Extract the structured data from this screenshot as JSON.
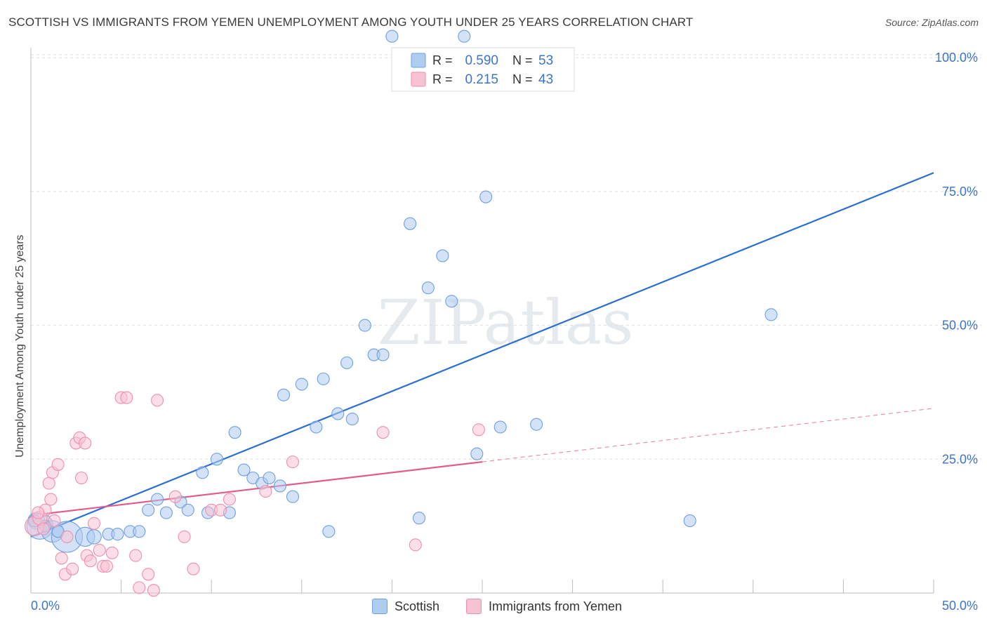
{
  "chart_data": {
    "type": "scatter",
    "title": "SCOTTISH VS IMMIGRANTS FROM YEMEN UNEMPLOYMENT AMONG YOUTH UNDER 25 YEARS CORRELATION CHART",
    "source": "Source: ZipAtlas.com",
    "xlabel": "",
    "ylabel": "Unemployment Among Youth under 25 years",
    "xlim": [
      0,
      50
    ],
    "ylim": [
      0,
      100
    ],
    "x_tick_labels": [
      "0.0%",
      "50.0%"
    ],
    "y_tick_labels": [
      "25.0%",
      "50.0%",
      "75.0%",
      "100.0%"
    ],
    "y_ticks": [
      25,
      50,
      75,
      100
    ],
    "grid": true,
    "watermark": "ZIPatlas",
    "legend": {
      "rows": [
        {
          "r_label": "R =",
          "r_value": "0.590",
          "n_label": "N =",
          "n_value": "53"
        },
        {
          "r_label": "R =",
          "r_value": "0.215",
          "n_label": "N =",
          "n_value": "43"
        }
      ]
    },
    "series": [
      {
        "name": "Scottish",
        "color": "#6fa0e0",
        "fill": "#aecbf0",
        "line_color": "#2b6fd1",
        "trend": {
          "x": [
            0,
            50
          ],
          "y": [
            10.5,
            78.5
          ],
          "dashed_from": null
        },
        "points": [
          [
            0.3,
            13.5,
            14
          ],
          [
            0.5,
            12.5,
            22
          ],
          [
            1.2,
            11.5,
            18
          ],
          [
            2.0,
            10.5,
            26
          ],
          [
            3.0,
            10.5,
            16
          ],
          [
            3.5,
            10.5,
            12
          ],
          [
            4.3,
            11,
            10
          ],
          [
            4.8,
            11,
            10
          ],
          [
            5.5,
            11.5,
            10
          ],
          [
            6.0,
            11.5,
            10
          ],
          [
            6.5,
            15.5,
            10
          ],
          [
            7.0,
            17.5,
            10
          ],
          [
            7.5,
            15,
            10
          ],
          [
            8.3,
            17,
            10
          ],
          [
            8.7,
            15.5,
            10
          ],
          [
            9.5,
            22.5,
            10
          ],
          [
            9.8,
            15,
            10
          ],
          [
            10.3,
            25,
            10
          ],
          [
            11.0,
            15,
            10
          ],
          [
            11.3,
            30,
            10
          ],
          [
            11.8,
            23,
            10
          ],
          [
            12.3,
            21.5,
            10
          ],
          [
            12.8,
            20.5,
            10
          ],
          [
            13.2,
            21.5,
            10
          ],
          [
            13.8,
            20,
            10
          ],
          [
            14.0,
            37,
            10
          ],
          [
            14.5,
            18,
            10
          ],
          [
            15.0,
            39,
            10
          ],
          [
            15.8,
            31,
            10
          ],
          [
            16.2,
            40,
            10
          ],
          [
            16.5,
            11.5,
            10
          ],
          [
            17.0,
            33.5,
            10
          ],
          [
            17.5,
            43,
            10
          ],
          [
            17.8,
            32.5,
            10
          ],
          [
            18.5,
            50,
            10
          ],
          [
            19.0,
            44.5,
            10
          ],
          [
            19.5,
            44.5,
            10
          ],
          [
            20.0,
            104,
            10
          ],
          [
            21.0,
            69,
            10
          ],
          [
            21.5,
            14,
            10
          ],
          [
            22.0,
            57,
            10
          ],
          [
            22.8,
            63,
            10
          ],
          [
            23.3,
            54.5,
            10
          ],
          [
            24.0,
            104,
            10
          ],
          [
            24.7,
            26,
            10
          ],
          [
            25.2,
            74,
            10
          ],
          [
            26.0,
            31,
            10
          ],
          [
            28.0,
            31.5,
            10
          ],
          [
            36.5,
            13.5,
            10
          ],
          [
            41.0,
            52,
            10
          ],
          [
            0.2,
            13.5,
            10
          ],
          [
            0.8,
            12.5,
            10
          ],
          [
            1.5,
            11.5,
            10
          ]
        ]
      },
      {
        "name": "Immigrants from Yemen",
        "color": "#ee8fae",
        "fill": "#f7c3d3",
        "line_color": "#e05c8b",
        "trend": {
          "x": [
            0,
            50
          ],
          "y": [
            14.5,
            34.5
          ],
          "dashed_from": 25
        },
        "points": [
          [
            0.2,
            12.5,
            16
          ],
          [
            0.5,
            14,
            12
          ],
          [
            0.8,
            15.5,
            10
          ],
          [
            1.0,
            20.5,
            10
          ],
          [
            1.2,
            22.5,
            10
          ],
          [
            1.1,
            17.5,
            10
          ],
          [
            1.3,
            13.5,
            10
          ],
          [
            1.5,
            24,
            10
          ],
          [
            1.7,
            6.5,
            10
          ],
          [
            1.9,
            3.5,
            10
          ],
          [
            2.0,
            10.5,
            10
          ],
          [
            2.3,
            4.5,
            10
          ],
          [
            2.5,
            28,
            10
          ],
          [
            2.7,
            29,
            10
          ],
          [
            2.8,
            21.5,
            10
          ],
          [
            3.0,
            28,
            10
          ],
          [
            3.1,
            7,
            10
          ],
          [
            3.3,
            6,
            10
          ],
          [
            3.5,
            13,
            10
          ],
          [
            3.8,
            8,
            10
          ],
          [
            4.0,
            5,
            10
          ],
          [
            4.2,
            5,
            10
          ],
          [
            4.5,
            7.5,
            10
          ],
          [
            5.0,
            36.5,
            10
          ],
          [
            5.3,
            36.5,
            10
          ],
          [
            5.8,
            7,
            10
          ],
          [
            6.0,
            1,
            10
          ],
          [
            6.5,
            3.5,
            10
          ],
          [
            6.8,
            0.5,
            10
          ],
          [
            7.0,
            36,
            10
          ],
          [
            8.0,
            18,
            10
          ],
          [
            8.5,
            10.5,
            10
          ],
          [
            9.0,
            4.5,
            10
          ],
          [
            10.0,
            15.5,
            10
          ],
          [
            10.5,
            15.5,
            10
          ],
          [
            11.0,
            17.5,
            10
          ],
          [
            13.0,
            19,
            10
          ],
          [
            14.5,
            24.5,
            10
          ],
          [
            19.5,
            30,
            10
          ],
          [
            21.3,
            9,
            10
          ],
          [
            24.8,
            30.5,
            10
          ],
          [
            0.4,
            15,
            10
          ],
          [
            0.7,
            12,
            10
          ]
        ]
      }
    ]
  }
}
